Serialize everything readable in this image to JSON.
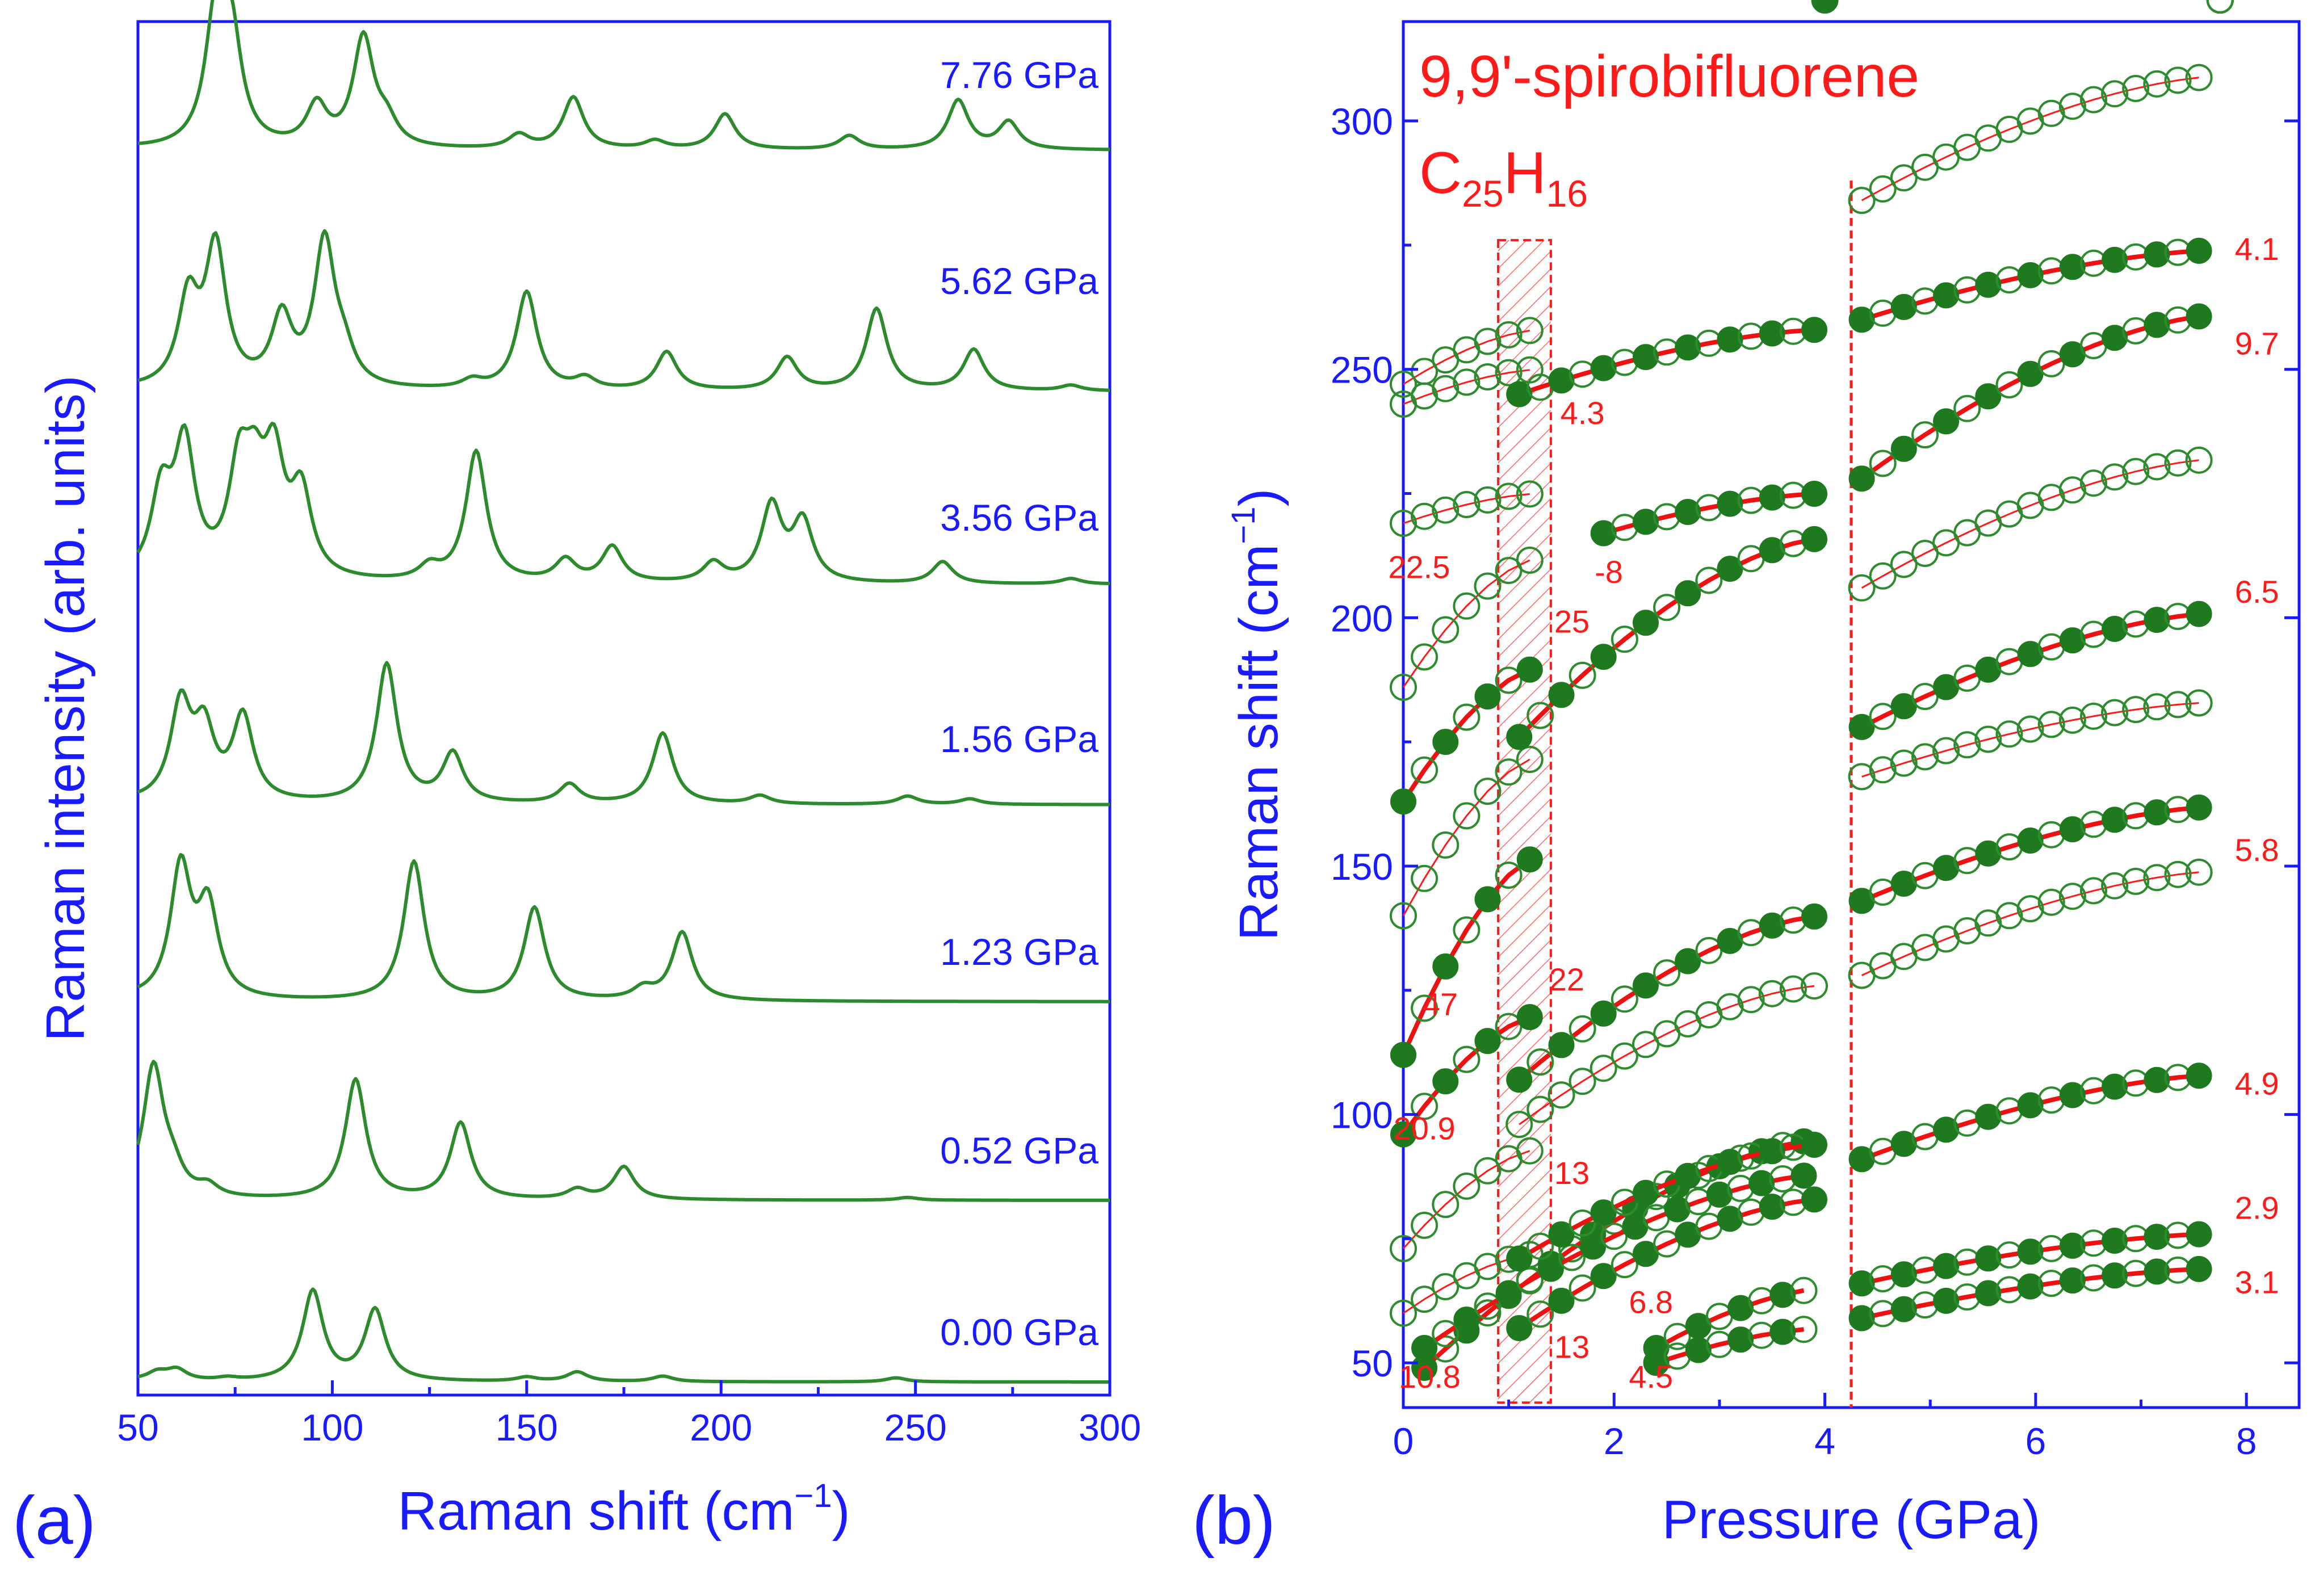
{
  "colors": {
    "axis": "#1a1aff",
    "spectra": "#2d8a2d",
    "points": "#1f7a1f",
    "fits": "#ff1a1a"
  },
  "panel_a": {
    "label": "(a)",
    "xlabel": "Raman shift (cm",
    "xlabel_sup": "−1",
    "xlabel_end": ")",
    "ylabel": "Raman intensity (arb. units)",
    "xticks": [
      "50",
      "100",
      "150",
      "200",
      "250",
      "300"
    ],
    "pressures": [
      "0.00 GPa",
      "0.52 GPa",
      "1.23 GPa",
      "1.56 GPa",
      "3.56 GPa",
      "5.62 GPa",
      "7.76 GPa"
    ]
  },
  "panel_b": {
    "label": "(b)",
    "title1": "9,9'-spirobifluorene",
    "title2_C": "C",
    "title2_Csub": "25",
    "title2_H": "H",
    "title2_Hsub": "16",
    "xlabel": "Pressure (GPa)",
    "ylabel": "Raman shift (cm",
    "ylabel_sup": "−1",
    "ylabel_end": ")",
    "xticks": [
      "0",
      "2",
      "4",
      "6",
      "8"
    ],
    "yticks": [
      "50",
      "100",
      "150",
      "200",
      "250",
      "300"
    ],
    "slope_labels": [
      "22.5",
      "-8",
      "25",
      "47",
      "22",
      "20.9",
      "13",
      "13",
      "10.8",
      "6.8",
      "4.5",
      "4.3",
      "4.1",
      "9.7",
      "6.5",
      "5.8",
      "4.9",
      "2.9",
      "3.1"
    ]
  },
  "chart_data": [
    {
      "type": "line",
      "title": "",
      "xlabel": "Raman shift (cm−1)",
      "ylabel": "Raman intensity (arb. units)",
      "xlim": [
        50,
        300
      ],
      "series": [
        {
          "name": "0.00 GPa",
          "peaks": [
            [
              55,
              0.3
            ],
            [
              60,
              0.4
            ],
            [
              73,
              0.1
            ],
            [
              95,
              3.3
            ],
            [
              111,
              2.6
            ],
            [
              150,
              0.15
            ],
            [
              163,
              0.35
            ],
            [
              185,
              0.2
            ],
            [
              245,
              0.15
            ]
          ]
        },
        {
          "name": "0.52 GPa",
          "peaks": [
            [
              54,
              4.8
            ],
            [
              59,
              0.8
            ],
            [
              68,
              0.4
            ],
            [
              106,
              4.4
            ],
            [
              133,
              2.8
            ],
            [
              163,
              0.35
            ],
            [
              175,
              1.2
            ],
            [
              248,
              0.1
            ]
          ]
        },
        {
          "name": "1.23 GPa",
          "peaks": [
            [
              61,
              4.8
            ],
            [
              68,
              3.3
            ],
            [
              121,
              5.1
            ],
            [
              152,
              3.4
            ],
            [
              180,
              0.4
            ],
            [
              190,
              2.5
            ]
          ]
        },
        {
          "name": "1.56 GPa",
          "peaks": [
            [
              61,
              3.5
            ],
            [
              67,
              2.5
            ],
            [
              77,
              3.1
            ],
            [
              114,
              5.1
            ],
            [
              131,
              1.8
            ],
            [
              161,
              0.7
            ],
            [
              185,
              2.6
            ],
            [
              210,
              0.3
            ],
            [
              248,
              0.3
            ],
            [
              264,
              0.2
            ]
          ]
        },
        {
          "name": "3.56 GPa",
          "peaks": [
            [
              56,
              3.0
            ],
            [
              62,
              4.8
            ],
            [
              76,
              3.6
            ],
            [
              80,
              2.8
            ],
            [
              85,
              4.0
            ],
            [
              92,
              3.0
            ],
            [
              125,
              0.5
            ],
            [
              137,
              4.8
            ],
            [
              160,
              0.8
            ],
            [
              172,
              1.3
            ],
            [
              198,
              0.7
            ],
            [
              213,
              2.8
            ],
            [
              221,
              2.2
            ],
            [
              257,
              0.8
            ],
            [
              290,
              0.2
            ]
          ]
        },
        {
          "name": "5.62 GPa",
          "peaks": [
            [
              63,
              3.2
            ],
            [
              70,
              5.1
            ],
            [
              87,
              2.5
            ],
            [
              98,
              5.3
            ],
            [
              103,
              1.0
            ],
            [
              136,
              0.3
            ],
            [
              150,
              3.6
            ],
            [
              165,
              0.4
            ],
            [
              186,
              1.4
            ],
            [
              217,
              1.2
            ],
            [
              240,
              3.0
            ],
            [
              265,
              1.5
            ],
            [
              290,
              0.2
            ]
          ]
        },
        {
          "name": "7.76 GPa",
          "peaks": [
            [
              70,
              4.6
            ],
            [
              74,
              3.8
            ],
            [
              96,
              1.5
            ],
            [
              108,
              4.0
            ],
            [
              114,
              0.8
            ],
            [
              148,
              0.5
            ],
            [
              162,
              1.9
            ],
            [
              183,
              0.3
            ],
            [
              201,
              1.3
            ],
            [
              233,
              0.5
            ],
            [
              261,
              1.8
            ],
            [
              274,
              1.0
            ]
          ]
        }
      ]
    },
    {
      "type": "scatter",
      "title": "9,9'-spirobifluorene C25H16",
      "xlabel": "Pressure (GPa)",
      "ylabel": "Raman shift (cm−1)",
      "xlim": [
        0,
        8.5
      ],
      "ylim": [
        41,
        320
      ],
      "vertical_line_x": 4.25,
      "shaded_region_x": [
        0.9,
        1.4
      ],
      "branches": [
        {
          "x0": 0.0,
          "x1": 1.3,
          "y0": 60,
          "y1": 72,
          "fit": "thin"
        },
        {
          "x0": 0.0,
          "x1": 1.3,
          "y0": 73,
          "y1": 93,
          "fit": "thin"
        },
        {
          "x0": 0.0,
          "x1": 1.3,
          "y0": 96,
          "y1": 120,
          "fit": "thick",
          "slope_label": "20.9"
        },
        {
          "x0": 0.0,
          "x1": 1.3,
          "y0": 112,
          "y1": 152,
          "fit": "thick",
          "slope_label": "47"
        },
        {
          "x0": 0.0,
          "x1": 1.3,
          "y0": 140,
          "y1": 172,
          "fit": "thin"
        },
        {
          "x0": 0.0,
          "x1": 1.3,
          "y0": 163,
          "y1": 190,
          "fit": "thick",
          "slope_label": "25"
        },
        {
          "x0": 0.0,
          "x1": 1.3,
          "y0": 186,
          "y1": 212,
          "fit": "thin"
        },
        {
          "x0": 0.0,
          "x1": 1.3,
          "y0": 219,
          "y1": 225,
          "fit": "thin",
          "slope_label": "22.5"
        },
        {
          "x0": 0.0,
          "x1": 1.3,
          "y0": 243,
          "y1": 250,
          "fit": "thin"
        },
        {
          "x0": 0.0,
          "x1": 1.3,
          "y0": 247,
          "y1": 258,
          "fit": "thin"
        },
        {
          "x0": 0.2,
          "x1": 4.0,
          "y0": 49,
          "y1": 95,
          "fit": "thick",
          "slope_label": "10.8"
        },
        {
          "x0": 0.2,
          "x1": 4.0,
          "y0": 53,
          "y1": 88,
          "fit": "thick"
        },
        {
          "x0": 1.1,
          "x1": 4.0,
          "y0": 71,
          "y1": 94,
          "fit": "thick",
          "slope_label": "13"
        },
        {
          "x0": 1.1,
          "x1": 4.0,
          "y0": 57,
          "y1": 83,
          "fit": "thick",
          "slope_label": "13"
        },
        {
          "x0": 1.1,
          "x1": 4.0,
          "y0": 107,
          "y1": 140,
          "fit": "thick",
          "slope_label": "22"
        },
        {
          "x0": 1.1,
          "x1": 4.0,
          "y0": 98,
          "y1": 126,
          "fit": "thin"
        },
        {
          "x0": 1.1,
          "x1": 4.0,
          "y0": 176,
          "y1": 216,
          "fit": "thick"
        },
        {
          "x0": 1.1,
          "x1": 4.0,
          "y0": 245,
          "y1": 258,
          "fit": "thick",
          "slope_label": "4.3"
        },
        {
          "x0": 1.9,
          "x1": 4.0,
          "y0": 217,
          "y1": 225,
          "fit": "thick",
          "slope_label": "-8"
        },
        {
          "x0": 2.4,
          "x1": 4.0,
          "y0": 53,
          "y1": 65,
          "fit": "thick",
          "slope_label": "6.8"
        },
        {
          "x0": 2.4,
          "x1": 4.0,
          "y0": 50,
          "y1": 57,
          "fit": "thick",
          "slope_label": "4.5"
        },
        {
          "x0": 4.35,
          "x1": 7.75,
          "y0": 59,
          "y1": 69,
          "fit": "thick",
          "slope_label": "3.1"
        },
        {
          "x0": 4.35,
          "x1": 7.75,
          "y0": 66,
          "y1": 76,
          "fit": "thick",
          "slope_label": "2.9"
        },
        {
          "x0": 4.35,
          "x1": 7.75,
          "y0": 91,
          "y1": 108,
          "fit": "thick",
          "slope_label": "4.9"
        },
        {
          "x0": 4.35,
          "x1": 7.75,
          "y0": 143,
          "y1": 162,
          "fit": "thick",
          "slope_label": "5.8"
        },
        {
          "x0": 4.35,
          "x1": 7.75,
          "y0": 178,
          "y1": 201,
          "fit": "thick",
          "slope_label": "6.5"
        },
        {
          "x0": 4.35,
          "x1": 7.75,
          "y0": 228,
          "y1": 261,
          "fit": "thick",
          "slope_label": "9.7"
        },
        {
          "x0": 4.35,
          "x1": 7.75,
          "y0": 260,
          "y1": 274,
          "fit": "thick",
          "slope_label": "4.1"
        },
        {
          "x0": 4.35,
          "x1": 7.75,
          "y0": 128,
          "y1": 149,
          "fit": "thin"
        },
        {
          "x0": 4.35,
          "x1": 7.75,
          "y0": 168,
          "y1": 183,
          "fit": "thin"
        },
        {
          "x0": 4.35,
          "x1": 7.75,
          "y0": 206,
          "y1": 232,
          "fit": "thin"
        },
        {
          "x0": 4.35,
          "x1": 7.75,
          "y0": 284,
          "y1": 309,
          "fit": "thin"
        }
      ]
    }
  ]
}
